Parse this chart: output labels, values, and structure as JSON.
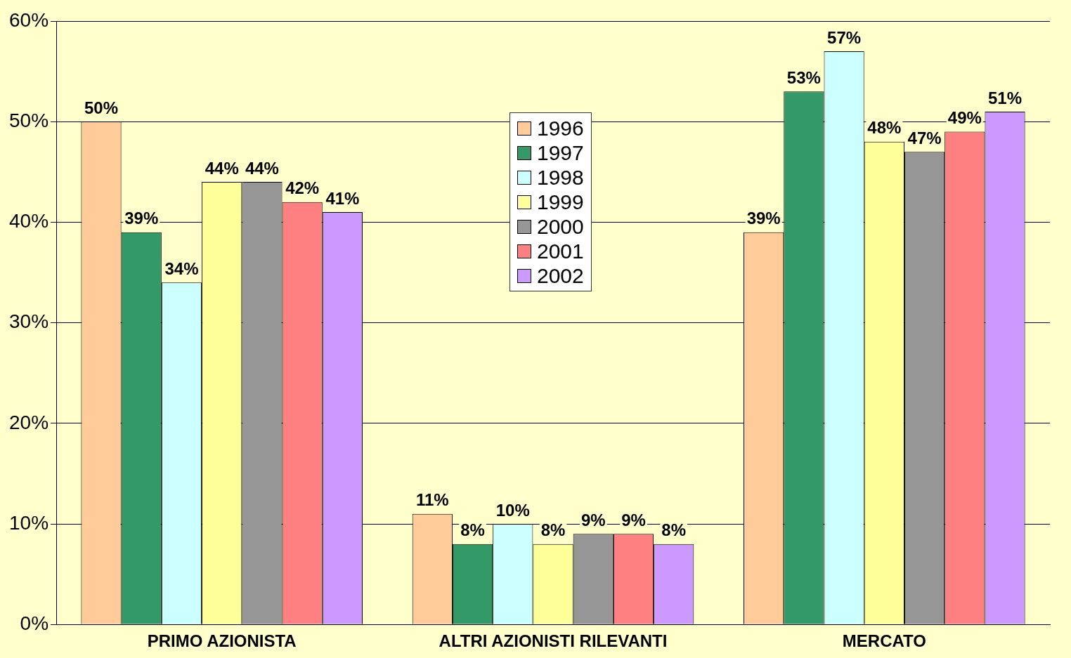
{
  "chart_data": {
    "type": "bar",
    "categories": [
      "PRIMO AZIONISTA",
      "ALTRI AZIONISTI RILEVANTI",
      "MERCATO"
    ],
    "series": [
      {
        "name": "1996",
        "color": "#ffcc99",
        "values": [
          50,
          11,
          39
        ],
        "value_labels": [
          "50%",
          "11%",
          "39%"
        ]
      },
      {
        "name": "1997",
        "color": "#339966",
        "values": [
          39,
          8,
          53
        ],
        "value_labels": [
          "39%",
          "8%",
          "53%"
        ]
      },
      {
        "name": "1998",
        "color": "#ccffff",
        "values": [
          34,
          10,
          57
        ],
        "value_labels": [
          "34%",
          "10%",
          "57%"
        ]
      },
      {
        "name": "1999",
        "color": "#ffff99",
        "values": [
          44,
          8,
          48
        ],
        "value_labels": [
          "44%",
          "8%",
          "48%"
        ]
      },
      {
        "name": "2000",
        "color": "#969696",
        "values": [
          44,
          9,
          47
        ],
        "value_labels": [
          "44%",
          "9%",
          "47%"
        ]
      },
      {
        "name": "2001",
        "color": "#ff8080",
        "values": [
          42,
          9,
          49
        ],
        "value_labels": [
          "42%",
          "9%",
          "49%"
        ]
      },
      {
        "name": "2002",
        "color": "#cc99ff",
        "values": [
          41,
          8,
          51
        ],
        "value_labels": [
          "41%",
          "8%",
          "51%"
        ]
      }
    ],
    "ylim": [
      0,
      60
    ],
    "yticks": [
      {
        "value": 0,
        "label": "0%"
      },
      {
        "value": 10,
        "label": "10%"
      },
      {
        "value": 20,
        "label": "20%"
      },
      {
        "value": 30,
        "label": "30%"
      },
      {
        "value": 40,
        "label": "40%"
      },
      {
        "value": 50,
        "label": "50%"
      },
      {
        "value": 60,
        "label": "60%"
      }
    ],
    "grid": "y",
    "legend": "top"
  }
}
